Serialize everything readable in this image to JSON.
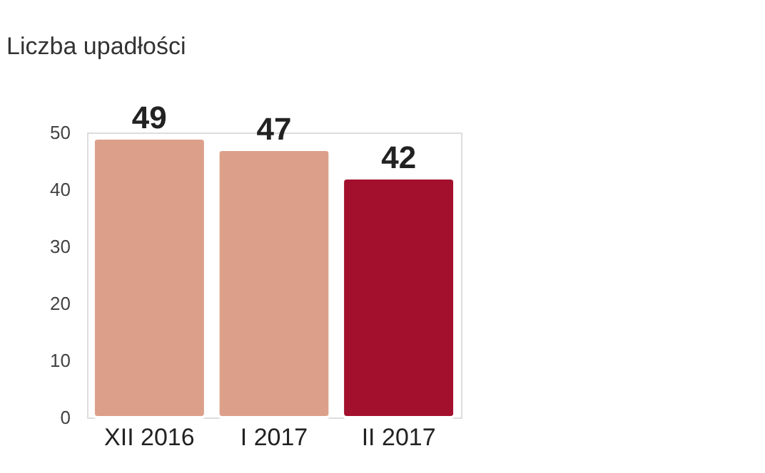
{
  "chart_data": {
    "type": "bar",
    "title": "Liczba upadłości",
    "categories": [
      "XII 2016",
      "I 2017",
      "II 2017"
    ],
    "values": [
      49,
      47,
      42
    ],
    "colors": [
      "#dca08a",
      "#dca08a",
      "#a3102e"
    ],
    "ylim": [
      0,
      50
    ],
    "yticks": [
      0,
      10,
      20,
      30,
      40,
      50
    ],
    "grid": false,
    "data_labels": true
  }
}
